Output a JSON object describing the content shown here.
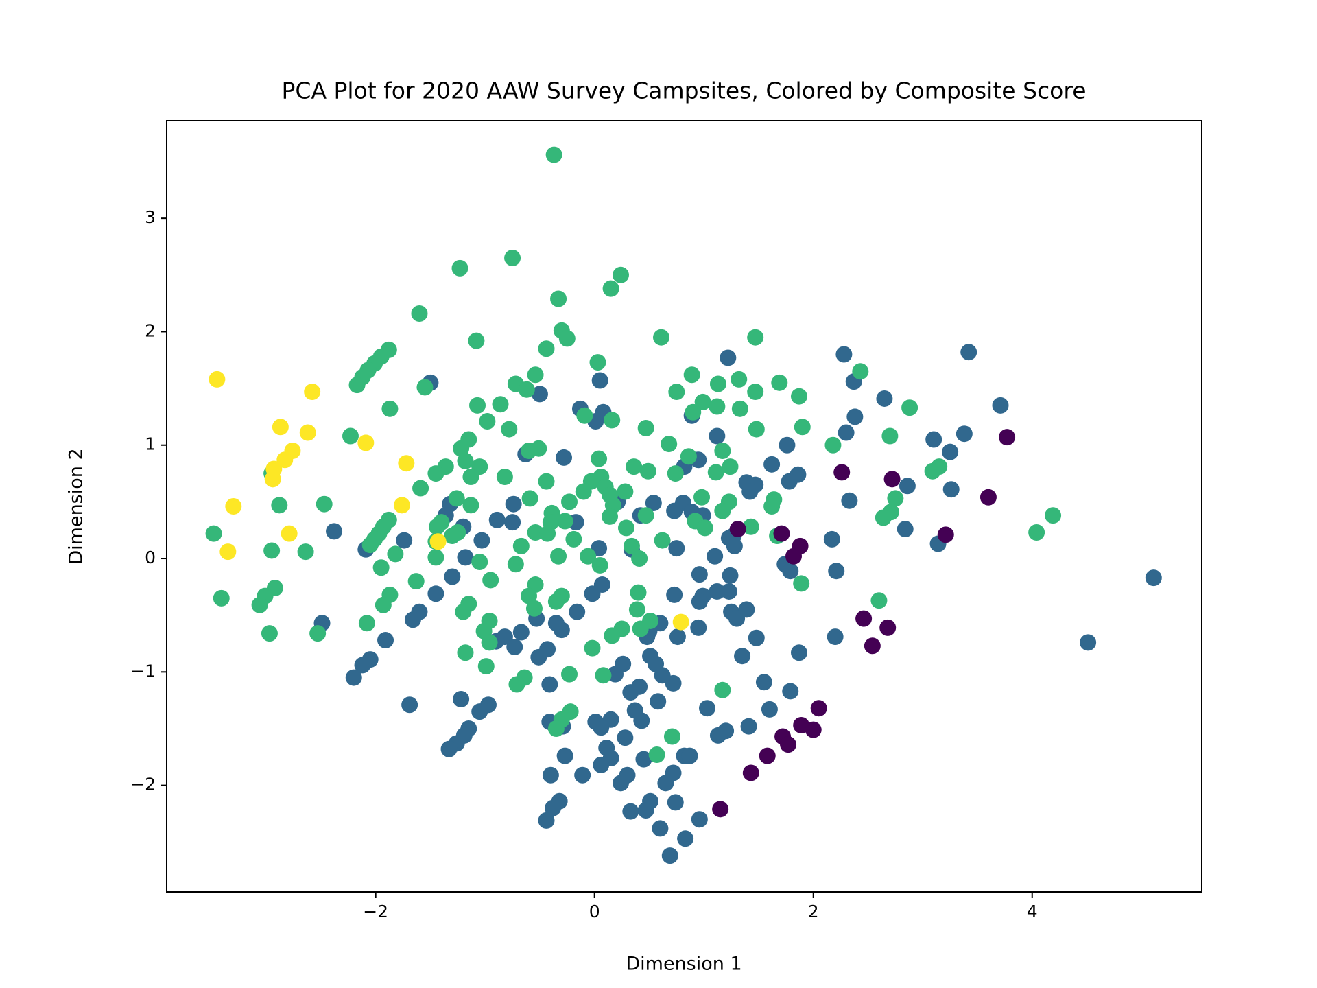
{
  "chart_data": {
    "type": "scatter",
    "title": "PCA Plot for 2020 AAW Survey Campsites, Colored by Composite Score",
    "x_label": "Dimension 1",
    "y_label": "Dimension 2",
    "xlim": [
      -3.91,
      5.55
    ],
    "ylim": [
      -2.94,
      3.86
    ],
    "xticks": [
      {
        "value": -2,
        "label": "−2"
      },
      0,
      2,
      4
    ],
    "yticks": [
      {
        "value": -2,
        "label": "−2"
      },
      {
        "value": -1,
        "label": "−1"
      },
      0,
      1,
      2,
      3
    ],
    "grid": false,
    "series": [
      {
        "color": "#31688e",
        "x": [
          3.42,
          2.28,
          1.22,
          2.37,
          -1.5,
          0.05,
          -0.5,
          2.65,
          3.71,
          -0.13,
          0.08,
          0.89,
          2.38,
          0.01,
          2.3,
          3.38,
          1.12,
          3.1,
          1.76,
          3.25,
          -0.63,
          -0.28,
          0.95,
          0.82,
          1.62,
          1.86,
          1.39,
          1.47,
          1.78,
          2.86,
          3.26,
          1.42,
          2.33,
          0.54,
          0.81,
          -0.74,
          -1.32,
          0.21,
          0.73,
          0.89,
          0.99,
          0.42,
          -0.89,
          -1.36,
          -0.17,
          -0.75,
          -1.2,
          -2.38,
          2.84,
          1.27,
          2.17,
          1.23,
          -1.03,
          -1.74,
          3.14,
          1.28,
          -2.09,
          0.34,
          0.04,
          0.75,
          -1.18,
          1.1,
          1.74,
          1.79,
          2.21,
          0.96,
          -1.3,
          1.24,
          5.11,
          0.07,
          -1.45,
          -0.02,
          1.12,
          0.99,
          1.23,
          0.73,
          0.96,
          -1.6,
          -0.16,
          1.25,
          1.39,
          1.3,
          -1.66,
          -0.53,
          -0.35,
          -2.49,
          0.6,
          -0.3,
          0.95,
          0.5,
          -0.67,
          -0.82,
          0.76,
          1.48,
          2.2,
          -0.9,
          -1.91,
          0.48,
          4.51,
          -0.73,
          -0.43,
          -2.05,
          -0.51,
          1.35,
          1.87,
          0.51,
          -2.12,
          0.26,
          0.56,
          0.19,
          -2.2,
          0.62,
          0.72,
          1.55,
          0.41,
          -0.41,
          0.33,
          1.79,
          -1.22,
          0.58,
          -1.69,
          -0.97,
          1.03,
          1.6,
          0.37,
          -1.05,
          0.43,
          0.15,
          0.01,
          -0.41,
          -0.29,
          0.06,
          1.41,
          -1.15,
          1.2,
          -1.19,
          0.28,
          1.13,
          -1.26,
          0.11,
          -1.33,
          -0.27,
          0.82,
          0.87,
          0.15,
          0.06,
          0.45,
          -0.4,
          -0.11,
          0.72,
          0.3,
          0.65,
          0.24,
          -0.32,
          0.51,
          -0.38,
          0.74,
          0.47,
          0.33,
          -0.44,
          0.96,
          0.6,
          0.83,
          0.69
        ],
        "y": [
          1.82,
          1.8,
          1.77,
          1.56,
          1.55,
          1.57,
          1.45,
          1.41,
          1.35,
          1.32,
          1.29,
          1.26,
          1.25,
          1.21,
          1.11,
          1.1,
          1.08,
          1.05,
          1.0,
          0.94,
          0.92,
          0.89,
          0.87,
          0.81,
          0.83,
          0.74,
          0.67,
          0.65,
          0.68,
          0.64,
          0.61,
          0.59,
          0.51,
          0.49,
          0.49,
          0.48,
          0.48,
          0.5,
          0.42,
          0.41,
          0.38,
          0.38,
          0.34,
          0.38,
          0.32,
          0.32,
          0.28,
          0.24,
          0.26,
          0.2,
          0.17,
          0.18,
          0.16,
          0.16,
          0.13,
          0.11,
          0.08,
          0.08,
          0.09,
          0.09,
          0.01,
          0.02,
          -0.05,
          -0.11,
          -0.11,
          -0.14,
          -0.16,
          -0.15,
          -0.17,
          -0.23,
          -0.31,
          -0.31,
          -0.29,
          -0.33,
          -0.29,
          -0.32,
          -0.38,
          -0.47,
          -0.47,
          -0.47,
          -0.45,
          -0.53,
          -0.54,
          -0.53,
          -0.57,
          -0.57,
          -0.57,
          -0.63,
          -0.61,
          -0.64,
          -0.65,
          -0.69,
          -0.69,
          -0.7,
          -0.69,
          -0.73,
          -0.72,
          -0.69,
          -0.74,
          -0.78,
          -0.8,
          -0.89,
          -0.87,
          -0.86,
          -0.83,
          -0.86,
          -0.94,
          -0.93,
          -0.93,
          -1.02,
          -1.05,
          -1.03,
          -1.1,
          -1.09,
          -1.13,
          -1.11,
          -1.18,
          -1.17,
          -1.24,
          -1.26,
          -1.29,
          -1.29,
          -1.32,
          -1.33,
          -1.34,
          -1.35,
          -1.43,
          -1.42,
          -1.44,
          -1.44,
          -1.48,
          -1.49,
          -1.48,
          -1.5,
          -1.52,
          -1.56,
          -1.58,
          -1.56,
          -1.63,
          -1.67,
          -1.68,
          -1.74,
          -1.74,
          -1.74,
          -1.76,
          -1.82,
          -1.77,
          -1.91,
          -1.91,
          -1.89,
          -1.91,
          -1.98,
          -1.98,
          -2.14,
          -2.14,
          -2.2,
          -2.15,
          -2.22,
          -2.23,
          -2.31,
          -2.3,
          -2.38,
          -2.47,
          -2.62
        ]
      },
      {
        "color": "#35b779",
        "x": [
          -0.37,
          -0.75,
          0.24,
          -1.23,
          0.15,
          -0.33,
          -1.6,
          -0.3,
          -0.25,
          -1.08,
          0.61,
          1.47,
          -0.44,
          -1.88,
          -1.95,
          -2.01,
          -2.07,
          -2.12,
          -2.17,
          0.03,
          -0.54,
          0.89,
          2.43,
          1.32,
          -0.72,
          1.13,
          1.69,
          -1.55,
          -0.62,
          0.75,
          1.47,
          1.87,
          -1.07,
          -0.86,
          0.99,
          1.12,
          2.88,
          -1.87,
          1.33,
          0.9,
          -0.09,
          0.16,
          -0.98,
          -0.78,
          0.47,
          1.48,
          1.9,
          -2.23,
          2.7,
          -1.15,
          2.18,
          0.68,
          -1.22,
          1.17,
          -0.6,
          -0.51,
          0.86,
          0.04,
          -1.18,
          -1.36,
          -1.05,
          0.36,
          3.15,
          3.09,
          0.49,
          -1.45,
          -0.82,
          1.11,
          0.74,
          1.24,
          -1.13,
          0.06,
          -0.44,
          -0.03,
          0.1,
          -1.59,
          0.28,
          -0.1,
          0.14,
          -0.59,
          0.98,
          2.75,
          1.64,
          1.23,
          -2.47,
          -2.88,
          -0.23,
          0.17,
          -1.13,
          -1.26,
          1.62,
          1.17,
          2.71,
          4.19,
          2.64,
          -0.39,
          0.14,
          -0.27,
          -1.88,
          0.47,
          -1.4,
          0.92,
          -0.4,
          1.43,
          -1.93,
          0.29,
          1.01,
          -1.44,
          -0.54,
          -1.25,
          -0.43,
          -1.97,
          -3.48,
          4.04,
          1.67,
          -1.3,
          -2.01,
          -0.19,
          0.62,
          -1.45,
          -2.05,
          -0.67,
          0.34,
          -2.95,
          -2.64,
          -1.82,
          -1.45,
          -0.33,
          -0.06,
          0.41,
          -1.05,
          -0.72,
          0.05,
          -1.95,
          -1.63,
          -0.95,
          -0.54,
          -2.92,
          0.4,
          -3.01,
          -3.41,
          -1.87,
          -0.6,
          -0.3,
          -3.06,
          -1.93,
          2.6,
          1.89,
          -0.35,
          -1.15,
          -0.55,
          -1.2,
          0.39,
          -0.96,
          0.51,
          -2.08,
          0.42,
          0.25,
          -1.01,
          -2.97,
          -2.53,
          0.16,
          -0.96,
          -1.18,
          -0.02,
          -0.99,
          -0.23,
          0.08,
          -0.64,
          -0.71,
          1.17,
          -0.22,
          -0.3,
          -0.35,
          0.71,
          0.57,
          -2.95
        ],
        "y": [
          3.56,
          2.65,
          2.5,
          2.56,
          2.38,
          2.29,
          2.16,
          2.01,
          1.94,
          1.92,
          1.95,
          1.95,
          1.85,
          1.84,
          1.78,
          1.72,
          1.66,
          1.6,
          1.53,
          1.73,
          1.62,
          1.62,
          1.65,
          1.58,
          1.54,
          1.54,
          1.55,
          1.51,
          1.49,
          1.47,
          1.47,
          1.43,
          1.35,
          1.36,
          1.38,
          1.34,
          1.33,
          1.32,
          1.32,
          1.29,
          1.26,
          1.22,
          1.21,
          1.14,
          1.15,
          1.14,
          1.16,
          1.08,
          1.08,
          1.05,
          1.0,
          1.01,
          0.97,
          0.95,
          0.95,
          0.97,
          0.9,
          0.88,
          0.86,
          0.81,
          0.81,
          0.81,
          0.81,
          0.77,
          0.77,
          0.75,
          0.72,
          0.76,
          0.75,
          0.81,
          0.72,
          0.72,
          0.68,
          0.68,
          0.63,
          0.62,
          0.59,
          0.59,
          0.56,
          0.53,
          0.54,
          0.53,
          0.52,
          0.5,
          0.48,
          0.47,
          0.5,
          0.47,
          0.47,
          0.53,
          0.46,
          0.42,
          0.41,
          0.38,
          0.36,
          0.4,
          0.37,
          0.33,
          0.34,
          0.38,
          0.32,
          0.33,
          0.32,
          0.28,
          0.28,
          0.27,
          0.27,
          0.28,
          0.23,
          0.23,
          0.22,
          0.22,
          0.22,
          0.23,
          0.2,
          0.2,
          0.17,
          0.17,
          0.16,
          0.15,
          0.12,
          0.11,
          0.11,
          0.07,
          0.06,
          0.04,
          0.01,
          0.02,
          0.02,
          0.0,
          -0.03,
          -0.05,
          -0.06,
          -0.08,
          -0.2,
          -0.19,
          -0.23,
          -0.26,
          -0.3,
          -0.33,
          -0.35,
          -0.32,
          -0.33,
          -0.33,
          -0.41,
          -0.41,
          -0.37,
          -0.22,
          -0.38,
          -0.4,
          -0.44,
          -0.47,
          -0.45,
          -0.55,
          -0.55,
          -0.57,
          -0.62,
          -0.62,
          -0.64,
          -0.66,
          -0.66,
          -0.68,
          -0.74,
          -0.83,
          -0.79,
          -0.95,
          -1.02,
          -1.03,
          -1.05,
          -1.11,
          -1.16,
          -1.35,
          -1.42,
          -1.5,
          -1.57,
          -1.73,
          0.75
        ]
      },
      {
        "color": "#fde725",
        "x": [
          -3.45,
          -2.58,
          -2.87,
          -2.62,
          -2.09,
          -2.76,
          -2.83,
          -1.72,
          -2.93,
          -2.94,
          -3.3,
          -1.76,
          -2.79,
          -3.35,
          -1.43,
          0.79
        ],
        "y": [
          1.58,
          1.47,
          1.16,
          1.11,
          1.02,
          0.95,
          0.87,
          0.84,
          0.79,
          0.7,
          0.46,
          0.47,
          0.22,
          0.06,
          0.15,
          -0.56
        ]
      },
      {
        "color": "#440154",
        "x": [
          3.77,
          2.26,
          2.72,
          3.6,
          1.31,
          1.71,
          3.21,
          1.88,
          1.82,
          2.46,
          2.68,
          2.54,
          2.05,
          1.89,
          2.0,
          1.72,
          1.77,
          1.58,
          1.43,
          1.15
        ],
        "y": [
          1.07,
          0.76,
          0.7,
          0.54,
          0.26,
          0.22,
          0.21,
          0.11,
          0.02,
          -0.53,
          -0.61,
          -0.77,
          -1.32,
          -1.47,
          -1.51,
          -1.57,
          -1.64,
          -1.74,
          -1.89,
          -2.21
        ]
      }
    ]
  }
}
